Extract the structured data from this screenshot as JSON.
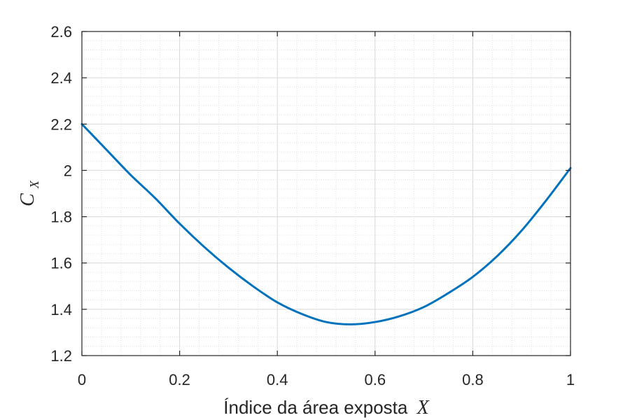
{
  "chart_data": {
    "type": "line",
    "xlabel": "Índice da área exposta",
    "xlabel_var": "X",
    "ylabel_var": "C",
    "ylabel_sub": "X",
    "xlim": [
      0,
      1
    ],
    "ylim": [
      1.2,
      2.6
    ],
    "xticks": [
      0,
      0.2,
      0.4,
      0.6,
      0.8,
      1
    ],
    "xtick_labels": [
      "0",
      "0.2",
      "0.4",
      "0.6",
      "0.8",
      "1"
    ],
    "yticks": [
      1.2,
      1.4,
      1.6,
      1.8,
      2.0,
      2.2,
      2.4,
      2.6
    ],
    "ytick_labels": [
      "1.2",
      "1.4",
      "1.6",
      "1.8",
      "2",
      "2.2",
      "2.4",
      "2.6"
    ],
    "grid": true,
    "minor_grid": true,
    "series": [
      {
        "color": "#0072bd",
        "x": [
          0,
          0.05,
          0.1,
          0.15,
          0.2,
          0.25,
          0.3,
          0.35,
          0.4,
          0.45,
          0.5,
          0.55,
          0.6,
          0.65,
          0.7,
          0.75,
          0.8,
          0.85,
          0.9,
          0.95,
          1.0
        ],
        "y": [
          2.2,
          2.09,
          1.98,
          1.88,
          1.77,
          1.67,
          1.58,
          1.5,
          1.43,
          1.38,
          1.345,
          1.335,
          1.345,
          1.37,
          1.41,
          1.47,
          1.54,
          1.63,
          1.74,
          1.87,
          2.01
        ]
      }
    ]
  }
}
